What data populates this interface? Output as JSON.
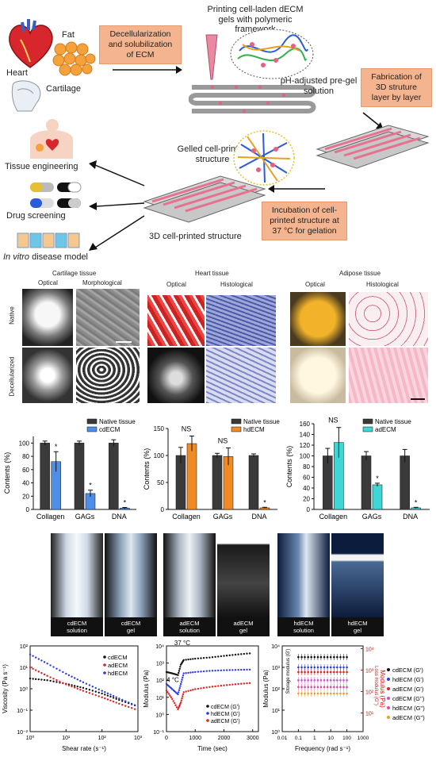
{
  "schematic": {
    "heart": "Heart",
    "fat": "Fat",
    "cartilage": "Cartilage",
    "decell_box": "Decellularization and solubilization of ECM",
    "printing_title": "Printing cell-laden dECM gels with polymeric framework",
    "preg_label": "pH-adjusted pre-gel solution",
    "fabrication_box": "Fabrication of 3D struture layer by layer",
    "gelled_label": "Gelled cell-printed structure",
    "incubation_box": "Incubation of cell-printed structure at 37 °C for gelation",
    "structure_label": "3D cell-printed structure",
    "app_tissue": "Tissue engineering",
    "app_drug": "Drug screening",
    "app_invitro_italic": "In vitro",
    "app_invitro_rest": " disease model"
  },
  "histology": {
    "cartilage_title": "Cartilage tissue",
    "heart_title": "Heart tissue",
    "adipose_title": "Adipose tissue",
    "optical": "Optical",
    "morphological": "Morphological",
    "histological": "Histological",
    "native": "Native",
    "decellularized": "Decellularized"
  },
  "gel_captions": [
    {
      "a": "cdECM",
      "b": "solution"
    },
    {
      "a": "cdECM",
      "b": "gel"
    },
    {
      "a": "adECM",
      "b": "solution"
    },
    {
      "a": "adECM",
      "b": "gel"
    },
    {
      "a": "hdECM",
      "b": "solution"
    },
    {
      "a": "hdECM",
      "b": "gel"
    }
  ],
  "chart_data": [
    {
      "type": "bar",
      "ylabel": "Contents (%)",
      "ylim": [
        0,
        110
      ],
      "yticks": [
        "0",
        "20",
        "40",
        "60",
        "80",
        "100"
      ],
      "categories": [
        "Collagen",
        "GAGs",
        "DNA"
      ],
      "series": [
        {
          "name": "Native tissue",
          "color": "#3a3a3a",
          "values": [
            100,
            100,
            100
          ],
          "errors": [
            3,
            3,
            5
          ]
        },
        {
          "name": "cdECM",
          "color": "#4d8fe8",
          "values": [
            72,
            24,
            2
          ],
          "errors": [
            15,
            5,
            1
          ]
        }
      ],
      "annotations": [
        "*",
        "*",
        "*"
      ]
    },
    {
      "type": "bar",
      "ylabel": "Contents (%)",
      "ylim": [
        0,
        150
      ],
      "yticks": [
        "0",
        "50",
        "100",
        "150"
      ],
      "categories": [
        "Collagen",
        "GAGs",
        "DNA"
      ],
      "series": [
        {
          "name": "Native tissue",
          "color": "#3a3a3a",
          "values": [
            100,
            100,
            100
          ],
          "errors": [
            15,
            4,
            3
          ]
        },
        {
          "name": "hdECM",
          "color": "#f08a24",
          "values": [
            122,
            98,
            3
          ],
          "errors": [
            14,
            16,
            1
          ]
        }
      ],
      "annotations": [
        "NS",
        "NS",
        "*"
      ]
    },
    {
      "type": "bar",
      "ylabel": "Contents (%)",
      "ylim": [
        0,
        160
      ],
      "yticks": [
        "0",
        "20",
        "40",
        "60",
        "80",
        "100",
        "120",
        "140",
        "160"
      ],
      "categories": [
        "Collagen",
        "GAGs",
        "DNA"
      ],
      "series": [
        {
          "name": "Native tissue",
          "color": "#3a3a3a",
          "values": [
            100,
            100,
            100
          ],
          "errors": [
            14,
            8,
            12
          ]
        },
        {
          "name": "adECM",
          "color": "#3fd6d6",
          "values": [
            125,
            46,
            3
          ],
          "errors": [
            28,
            3,
            1
          ]
        }
      ],
      "annotations": [
        "NS",
        "*",
        "*"
      ]
    },
    {
      "type": "line",
      "ylabel": "Viscosity (Pa s⁻¹)",
      "xlabel": "Shear rate (s⁻¹)",
      "xscale": "log",
      "yscale": "log",
      "xlim": [
        1,
        1000
      ],
      "ylim": [
        0.01,
        100
      ],
      "xticks": [
        "10⁰",
        "10¹",
        "10²",
        "10³"
      ],
      "yticks": [
        "10⁻²",
        "10⁻¹",
        "10⁰",
        "10¹",
        "10²"
      ],
      "series": [
        {
          "name": "cdECM",
          "color": "#111111",
          "x": [
            1,
            3,
            10,
            30,
            100,
            300,
            1000
          ],
          "y": [
            3,
            2.5,
            1.7,
            1.1,
            0.6,
            0.3,
            0.15
          ]
        },
        {
          "name": "adECM",
          "color": "#e02020",
          "x": [
            1,
            3,
            10,
            30,
            100,
            300,
            1000
          ],
          "y": [
            10,
            4,
            1.6,
            0.8,
            0.4,
            0.2,
            0.1
          ]
        },
        {
          "name": "hdECM",
          "color": "#2a3adf",
          "x": [
            1,
            3,
            10,
            30,
            100,
            300,
            1000
          ],
          "y": [
            40,
            15,
            5,
            2,
            0.8,
            0.35,
            0.15
          ]
        }
      ]
    },
    {
      "type": "scatter",
      "ylabel": "Modulus (Pa)",
      "xlabel": "Time (sec)",
      "yscale": "log",
      "xlim": [
        0,
        3200
      ],
      "ylim": [
        0.1,
        10000
      ],
      "xticks": [
        "0",
        "1000",
        "2000",
        "3000"
      ],
      "yticks": [
        "10⁻¹",
        "10⁰",
        "10¹",
        "10²",
        "10³",
        "10⁴"
      ],
      "annotations": [
        "37 °C",
        "4 °C"
      ],
      "series": [
        {
          "name": "cdECM (G')",
          "color": "#111111",
          "x": [
            0,
            200,
            400,
            500,
            600,
            1000,
            1500,
            2000,
            2500,
            3000
          ],
          "y": [
            300,
            250,
            200,
            800,
            1500,
            1800,
            2100,
            2600,
            3200,
            3800
          ]
        },
        {
          "name": "hdECM (G')",
          "color": "#2a3adf",
          "x": [
            0,
            200,
            400,
            500,
            600,
            1000,
            1500,
            2000,
            2500,
            3000
          ],
          "y": [
            60,
            30,
            15,
            60,
            250,
            300,
            350,
            380,
            400,
            420
          ]
        },
        {
          "name": "adECM (G')",
          "color": "#e02020",
          "x": [
            0,
            200,
            400,
            500,
            600,
            1000,
            1500,
            2000,
            2500,
            3000
          ],
          "y": [
            25,
            8,
            2,
            5,
            20,
            30,
            40,
            50,
            60,
            70
          ]
        }
      ]
    },
    {
      "type": "scatter",
      "ylabel": "Modulus (Pa)",
      "ylabel_left_inner": "Storage modulus (G')",
      "ylabel_right": "Modulus (Pa)",
      "ylabel_right_inner": "Loss modulus (G'')",
      "xlabel": "Frequency (rad s⁻¹)",
      "xscale": "log",
      "yscale": "log",
      "xlim": [
        0.01,
        1000
      ],
      "xticks": [
        "0.01",
        "0.1",
        "1",
        "10",
        "100",
        "1000"
      ],
      "yticks_left": [
        "10⁰",
        "10¹",
        "10²",
        "10³",
        "10⁴"
      ],
      "yticks_right": [
        "10¹",
        "10²",
        "10³",
        "10⁴"
      ],
      "series": [
        {
          "name": "cdECM (G')",
          "color": "#111111",
          "value": 3000
        },
        {
          "name": "hdECM (G')",
          "color": "#2a3adf",
          "value": 1000
        },
        {
          "name": "adECM (G')",
          "color": "#e02020",
          "value": 600
        },
        {
          "name": "cdECM (G'')",
          "color": "#c94fd8",
          "value": 250
        },
        {
          "name": "hdECM (G'')",
          "color": "#d94fa0",
          "value": 120
        },
        {
          "name": "adECM (G'')",
          "color": "#e8a030",
          "value": 60
        }
      ]
    }
  ]
}
